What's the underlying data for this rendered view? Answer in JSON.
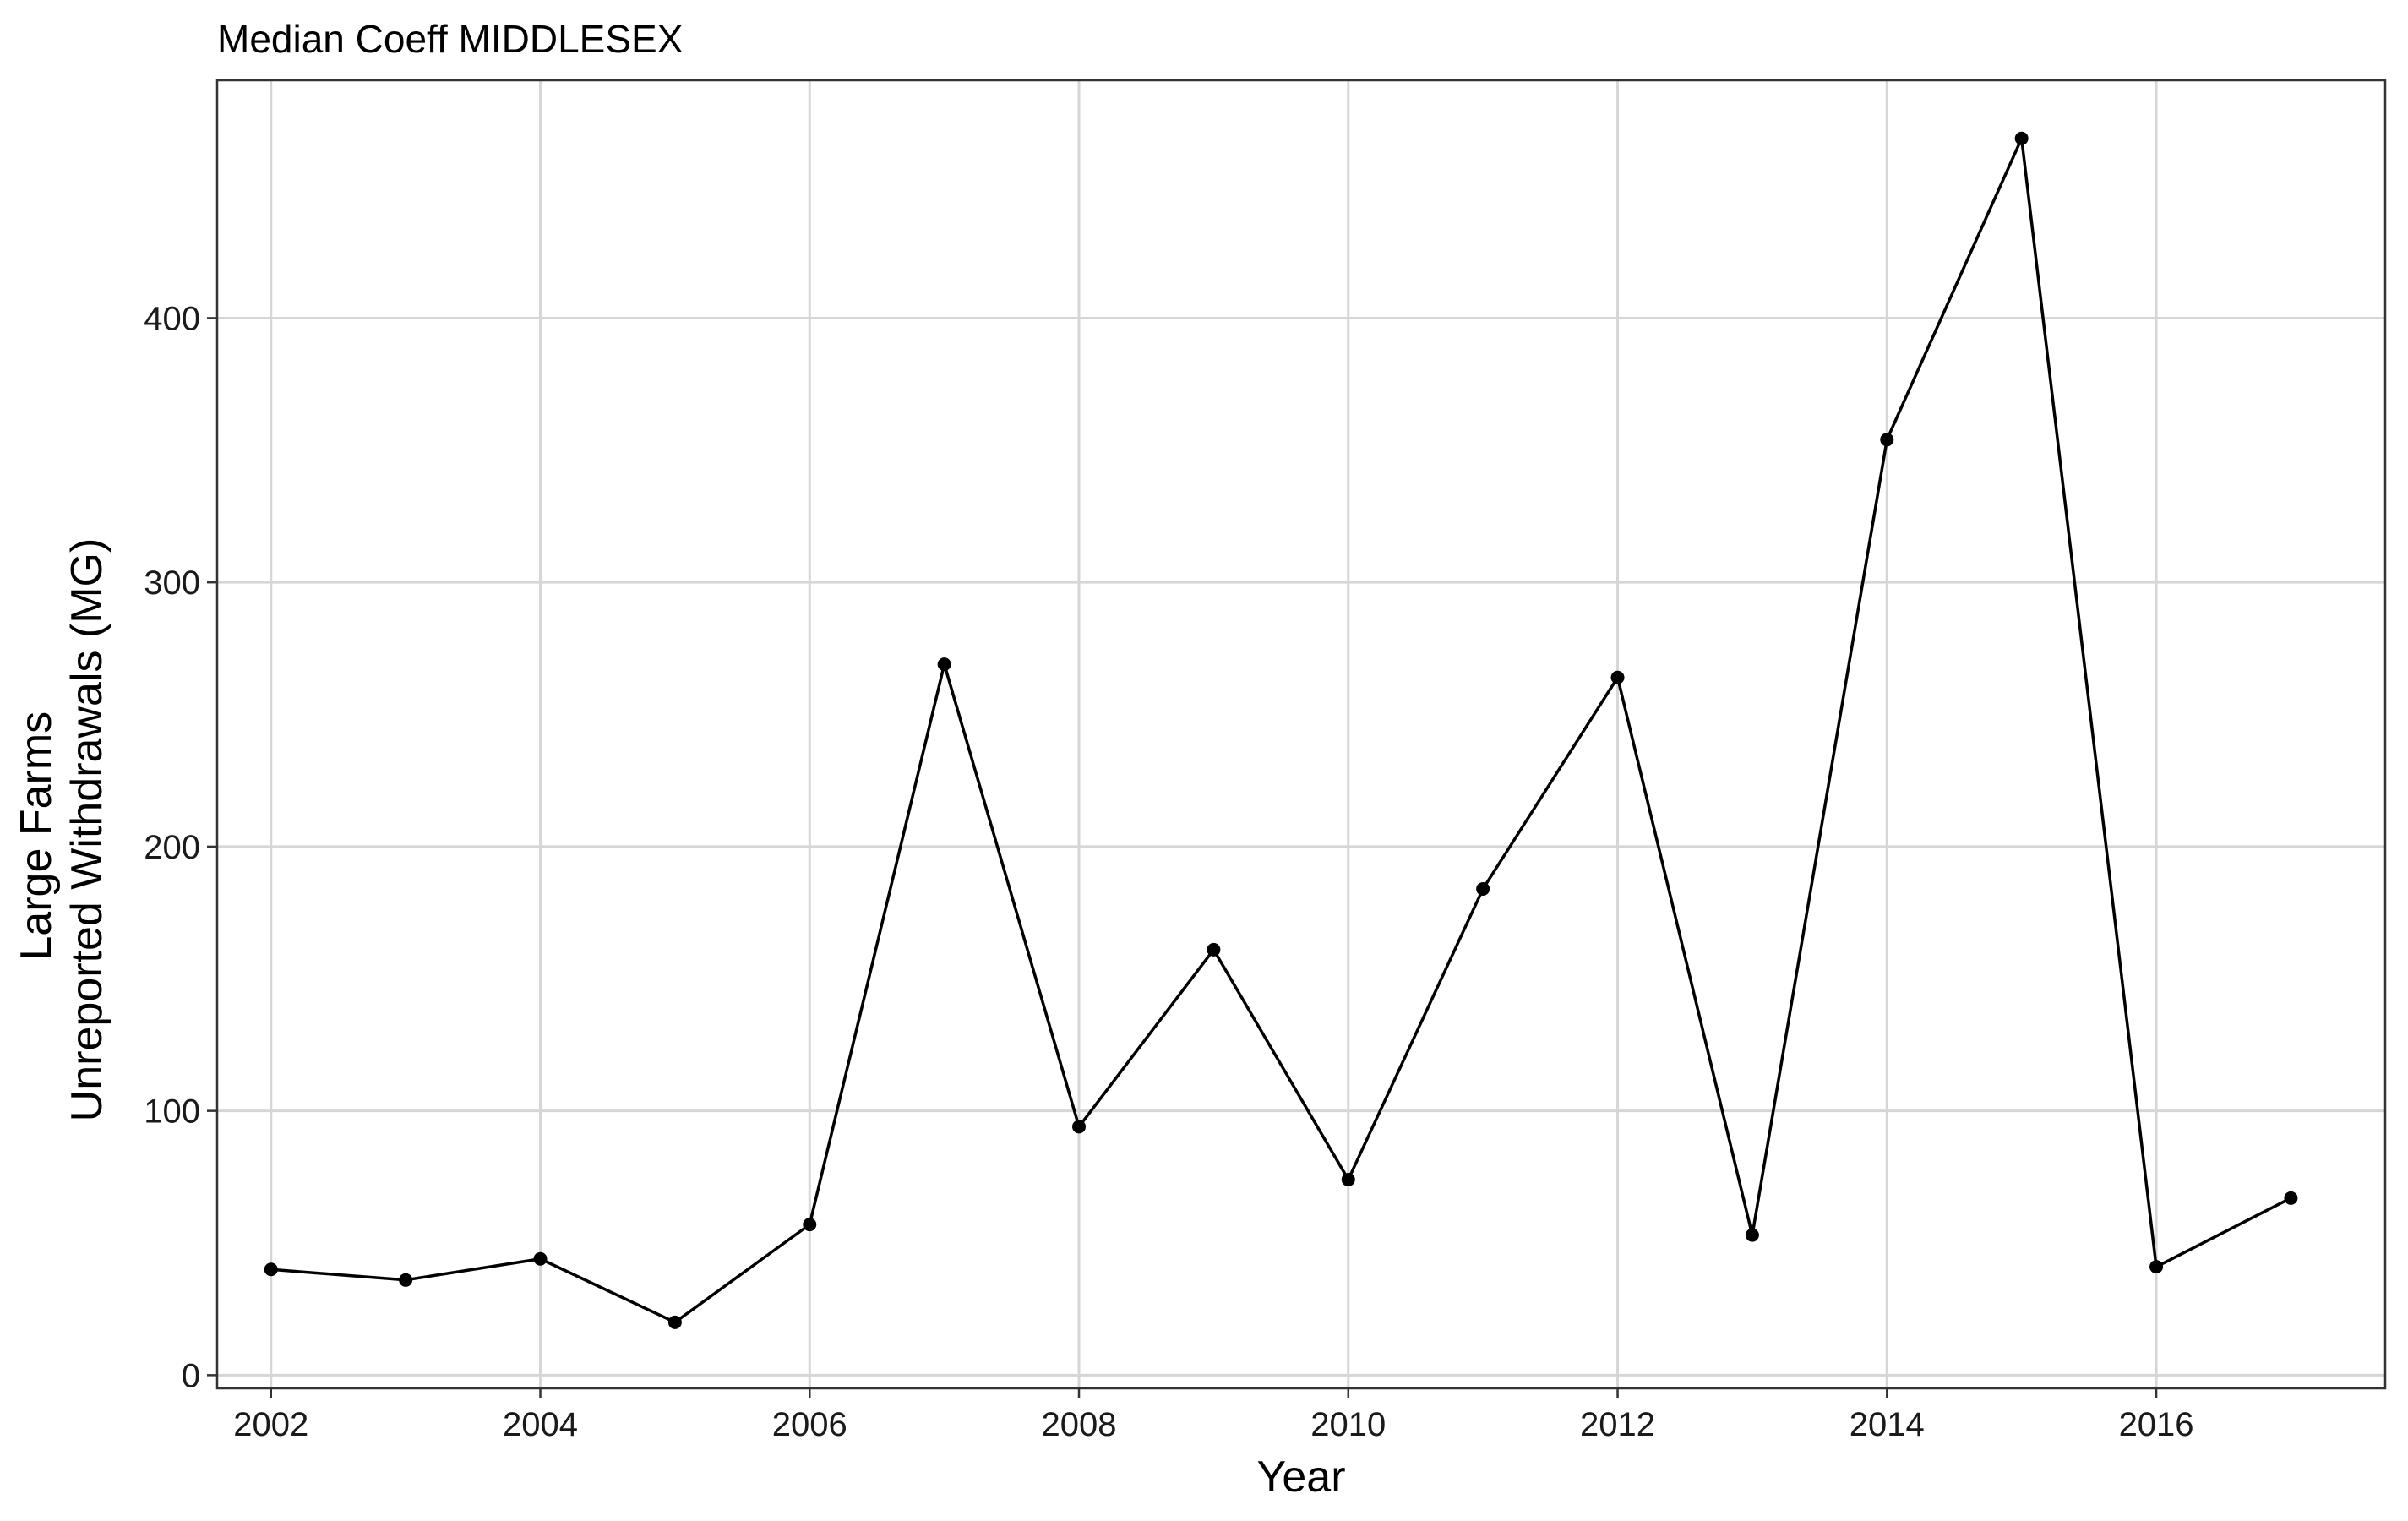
{
  "chart_data": {
    "type": "line",
    "title": "Median Coeff MIDDLESEX",
    "xlabel": "Year",
    "ylabel_lines": [
      "Large Farms",
      "Unreported Withdrawals (MG)"
    ],
    "x": [
      2002,
      2003,
      2004,
      2005,
      2006,
      2007,
      2008,
      2009,
      2010,
      2011,
      2012,
      2013,
      2014,
      2015,
      2016,
      2017
    ],
    "series": [
      {
        "values": [
          40,
          36,
          44,
          20,
          57,
          269,
          94,
          161,
          74,
          184,
          264,
          53,
          354,
          468,
          41,
          67
        ]
      }
    ],
    "xlim": [
      2001.6,
      2017.7
    ],
    "ylim": [
      -5,
      490
    ],
    "x_ticks": [
      2002,
      2004,
      2006,
      2008,
      2010,
      2012,
      2014,
      2016
    ],
    "y_ticks": [
      0,
      100,
      200,
      300,
      400
    ],
    "grid": true,
    "legend": "none",
    "colors": {
      "line": "#000000",
      "grid": "#d6d6d6",
      "border": "#333333"
    }
  }
}
